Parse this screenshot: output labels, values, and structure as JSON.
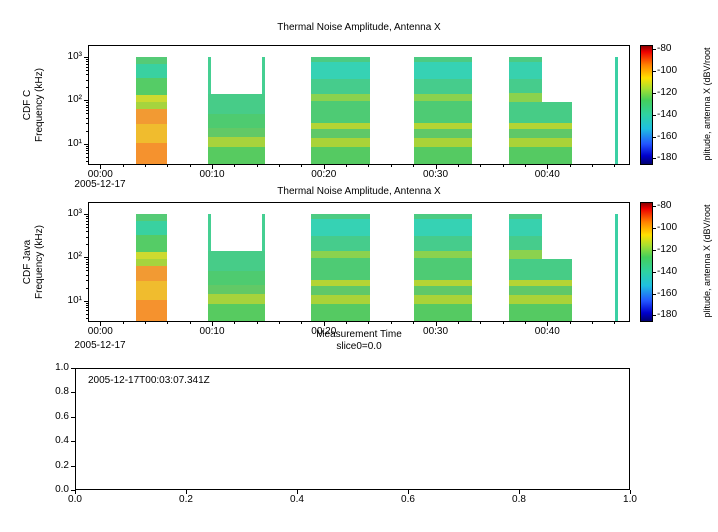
{
  "window": {
    "background": "#ffffff"
  },
  "chart_data": [
    {
      "type": "heatmap",
      "panel": "top",
      "title": "Thermal Noise Amplitude, Antenna X",
      "ylabel": [
        "CDF C",
        "Frequency (kHz)"
      ],
      "xlabel": "",
      "date_label": "2005-12-17",
      "x_range_minutes": [
        -1.1,
        47.4
      ],
      "y_scale": "log",
      "y_range_khz": [
        3.2,
        1900
      ],
      "x_ticks": [
        {
          "min": 0,
          "label": "00:00"
        },
        {
          "min": 10,
          "label": "00:10"
        },
        {
          "min": 20,
          "label": "00:20"
        },
        {
          "min": 30,
          "label": "00:30"
        },
        {
          "min": 40,
          "label": "00:40"
        }
      ],
      "y_ticks": [
        {
          "khz": 10,
          "label": "10¹"
        },
        {
          "khz": 100,
          "label": "10²"
        },
        {
          "khz": 1000,
          "label": "10³"
        }
      ],
      "colorbar": {
        "label": "plitude, antenna X (dBV/root",
        "ticks": [
          -80,
          -100,
          -120,
          -140,
          -160,
          -180
        ],
        "range": [
          -76,
          -186
        ],
        "gradient": [
          "#8b0000 0%",
          "#ee0000 5%",
          "#ff8000 16%",
          "#ffe000 27%",
          "#a8e030 36%",
          "#44cf5c 46%",
          "#2fd3a0 58%",
          "#1fc0e0 70%",
          "#2255ff 83%",
          "#0000cc 93%",
          "#000070 100%"
        ]
      },
      "bursts": [
        {
          "t": [
            3.1,
            5.9
          ],
          "f": [
            3.2,
            10
          ],
          "c": "#f5922e"
        },
        {
          "t": [
            3.1,
            5.9
          ],
          "f": [
            10,
            28
          ],
          "c": "#f0bc2e"
        },
        {
          "t": [
            3.1,
            5.9
          ],
          "f": [
            28,
            62
          ],
          "c": "#f29a33"
        },
        {
          "t": [
            3.1,
            5.9
          ],
          "f": [
            62,
            90
          ],
          "c": "#a6d43e"
        },
        {
          "t": [
            3.1,
            5.9
          ],
          "f": [
            90,
            135
          ],
          "c": "#cdda30"
        },
        {
          "t": [
            3.1,
            5.9
          ],
          "f": [
            135,
            330
          ],
          "c": "#55cc66"
        },
        {
          "t": [
            3.1,
            5.9
          ],
          "f": [
            330,
            730
          ],
          "c": "#39d1a0"
        },
        {
          "t": [
            3.1,
            5.9
          ],
          "f": [
            730,
            1050
          ],
          "c": "#55cb76"
        },
        {
          "t": [
            9.6,
            9.85
          ],
          "f": [
            3.2,
            1050
          ],
          "c": "#45cf92"
        },
        {
          "t": [
            14.45,
            14.7
          ],
          "f": [
            3.2,
            1050
          ],
          "c": "#45cf92"
        },
        {
          "t": [
            9.6,
            14.7
          ],
          "f": [
            3.2,
            8
          ],
          "c": "#57cb60"
        },
        {
          "t": [
            9.6,
            14.7
          ],
          "f": [
            8,
            14
          ],
          "c": "#a7d33c"
        },
        {
          "t": [
            9.6,
            14.7
          ],
          "f": [
            14,
            22
          ],
          "c": "#62c966"
        },
        {
          "t": [
            9.6,
            14.7
          ],
          "f": [
            22,
            48
          ],
          "c": "#4ecb70"
        },
        {
          "t": [
            9.6,
            14.7
          ],
          "f": [
            48,
            140
          ],
          "c": "#47cc88"
        },
        {
          "t": [
            18.8,
            24.1
          ],
          "f": [
            3.2,
            8
          ],
          "c": "#55ca62"
        },
        {
          "t": [
            18.8,
            24.1
          ],
          "f": [
            8,
            13
          ],
          "c": "#a9d338"
        },
        {
          "t": [
            18.8,
            24.1
          ],
          "f": [
            13,
            21
          ],
          "c": "#5fc868"
        },
        {
          "t": [
            18.8,
            24.1
          ],
          "f": [
            21,
            30
          ],
          "c": "#b4d434"
        },
        {
          "t": [
            18.8,
            24.1
          ],
          "f": [
            30,
            95
          ],
          "c": "#4ecb74"
        },
        {
          "t": [
            18.8,
            24.1
          ],
          "f": [
            95,
            145
          ],
          "c": "#8bd24e"
        },
        {
          "t": [
            18.8,
            24.1
          ],
          "f": [
            145,
            310
          ],
          "c": "#46cc8c"
        },
        {
          "t": [
            18.8,
            24.1
          ],
          "f": [
            310,
            820
          ],
          "c": "#36d2b4"
        },
        {
          "t": [
            18.8,
            24.1
          ],
          "f": [
            820,
            1050
          ],
          "c": "#4ccb82"
        },
        {
          "t": [
            28.1,
            33.3
          ],
          "f": [
            3.2,
            8
          ],
          "c": "#55ca62"
        },
        {
          "t": [
            28.1,
            33.3
          ],
          "f": [
            8,
            13
          ],
          "c": "#a9d338"
        },
        {
          "t": [
            28.1,
            33.3
          ],
          "f": [
            13,
            21
          ],
          "c": "#5fc868"
        },
        {
          "t": [
            28.1,
            33.3
          ],
          "f": [
            21,
            30
          ],
          "c": "#b4d434"
        },
        {
          "t": [
            28.1,
            33.3
          ],
          "f": [
            30,
            95
          ],
          "c": "#4ecb74"
        },
        {
          "t": [
            28.1,
            33.3
          ],
          "f": [
            95,
            145
          ],
          "c": "#8bd24e"
        },
        {
          "t": [
            28.1,
            33.3
          ],
          "f": [
            145,
            310
          ],
          "c": "#46cc8c"
        },
        {
          "t": [
            28.1,
            33.3
          ],
          "f": [
            310,
            820
          ],
          "c": "#36d2b4"
        },
        {
          "t": [
            28.1,
            33.3
          ],
          "f": [
            820,
            1050
          ],
          "c": "#4ccb82"
        },
        {
          "t": [
            36.6,
            42.3
          ],
          "f": [
            3.2,
            8
          ],
          "c": "#55ca62"
        },
        {
          "t": [
            36.6,
            42.3
          ],
          "f": [
            8,
            13
          ],
          "c": "#a9d338"
        },
        {
          "t": [
            36.6,
            42.3
          ],
          "f": [
            13,
            21
          ],
          "c": "#5fc868"
        },
        {
          "t": [
            36.6,
            42.3
          ],
          "f": [
            21,
            30
          ],
          "c": "#b4d434"
        },
        {
          "t": [
            36.6,
            42.3
          ],
          "f": [
            30,
            92
          ],
          "c": "#47cc86"
        },
        {
          "t": [
            36.6,
            39.6
          ],
          "f": [
            92,
            150
          ],
          "c": "#8bd24e"
        },
        {
          "t": [
            36.6,
            39.6
          ],
          "f": [
            150,
            320
          ],
          "c": "#46cc8c"
        },
        {
          "t": [
            36.6,
            39.6
          ],
          "f": [
            320,
            800
          ],
          "c": "#38d1ae"
        },
        {
          "t": [
            36.6,
            39.6
          ],
          "f": [
            800,
            1050
          ],
          "c": "#4ccb82"
        },
        {
          "t": [
            46.1,
            46.4
          ],
          "f": [
            3.2,
            1050
          ],
          "c": "#3bd0a4"
        }
      ]
    },
    {
      "type": "heatmap",
      "panel": "mid",
      "title": "Thermal Noise Amplitude, Antenna X",
      "ylabel": [
        "CDF Java",
        "Frequency (kHz)"
      ],
      "xlabel": "Measurement Time",
      "slice_label": "slice0=0.0",
      "date_label": "2005-12-17",
      "x_range_minutes": [
        -1.1,
        47.4
      ],
      "y_scale": "log",
      "y_range_khz": [
        3.2,
        1900
      ],
      "x_ticks": [
        {
          "min": 0,
          "label": "00:00"
        },
        {
          "min": 10,
          "label": "00:10"
        },
        {
          "min": 20,
          "label": "00:20"
        },
        {
          "min": 30,
          "label": "00:30"
        },
        {
          "min": 40,
          "label": "00:40"
        }
      ],
      "y_ticks": [
        {
          "khz": 10,
          "label": "10¹"
        },
        {
          "khz": 100,
          "label": "10²"
        },
        {
          "khz": 1000,
          "label": "10³"
        }
      ],
      "colorbar": {
        "label": "plitude, antenna X (dBV/root",
        "ticks": [
          -80,
          -100,
          -120,
          -140,
          -160,
          -180
        ],
        "range": [
          -76,
          -186
        ],
        "gradient": [
          "#8b0000 0%",
          "#ee0000 5%",
          "#ff8000 16%",
          "#ffe000 27%",
          "#a8e030 36%",
          "#44cf5c 46%",
          "#2fd3a0 58%",
          "#1fc0e0 70%",
          "#2255ff 83%",
          "#0000cc 93%",
          "#000070 100%"
        ]
      },
      "bursts": [
        {
          "t": [
            3.1,
            5.9
          ],
          "f": [
            3.2,
            10
          ],
          "c": "#f5922e"
        },
        {
          "t": [
            3.1,
            5.9
          ],
          "f": [
            10,
            28
          ],
          "c": "#f0bc2e"
        },
        {
          "t": [
            3.1,
            5.9
          ],
          "f": [
            28,
            62
          ],
          "c": "#f29a33"
        },
        {
          "t": [
            3.1,
            5.9
          ],
          "f": [
            62,
            90
          ],
          "c": "#a6d43e"
        },
        {
          "t": [
            3.1,
            5.9
          ],
          "f": [
            90,
            135
          ],
          "c": "#cdda30"
        },
        {
          "t": [
            3.1,
            5.9
          ],
          "f": [
            135,
            330
          ],
          "c": "#55cc66"
        },
        {
          "t": [
            3.1,
            5.9
          ],
          "f": [
            330,
            730
          ],
          "c": "#39d1a0"
        },
        {
          "t": [
            3.1,
            5.9
          ],
          "f": [
            730,
            1050
          ],
          "c": "#55cb76"
        },
        {
          "t": [
            9.6,
            9.85
          ],
          "f": [
            3.2,
            1050
          ],
          "c": "#45cf92"
        },
        {
          "t": [
            14.45,
            14.7
          ],
          "f": [
            3.2,
            1050
          ],
          "c": "#45cf92"
        },
        {
          "t": [
            9.6,
            14.7
          ],
          "f": [
            3.2,
            8
          ],
          "c": "#57cb60"
        },
        {
          "t": [
            9.6,
            14.7
          ],
          "f": [
            8,
            14
          ],
          "c": "#a7d33c"
        },
        {
          "t": [
            9.6,
            14.7
          ],
          "f": [
            14,
            22
          ],
          "c": "#62c966"
        },
        {
          "t": [
            9.6,
            14.7
          ],
          "f": [
            22,
            48
          ],
          "c": "#4ecb70"
        },
        {
          "t": [
            9.6,
            14.7
          ],
          "f": [
            48,
            140
          ],
          "c": "#47cc88"
        },
        {
          "t": [
            18.8,
            24.1
          ],
          "f": [
            3.2,
            8
          ],
          "c": "#55ca62"
        },
        {
          "t": [
            18.8,
            24.1
          ],
          "f": [
            8,
            13
          ],
          "c": "#a9d338"
        },
        {
          "t": [
            18.8,
            24.1
          ],
          "f": [
            13,
            21
          ],
          "c": "#5fc868"
        },
        {
          "t": [
            18.8,
            24.1
          ],
          "f": [
            21,
            30
          ],
          "c": "#b4d434"
        },
        {
          "t": [
            18.8,
            24.1
          ],
          "f": [
            30,
            95
          ],
          "c": "#4ecb74"
        },
        {
          "t": [
            18.8,
            24.1
          ],
          "f": [
            95,
            145
          ],
          "c": "#8bd24e"
        },
        {
          "t": [
            18.8,
            24.1
          ],
          "f": [
            145,
            310
          ],
          "c": "#46cc8c"
        },
        {
          "t": [
            18.8,
            24.1
          ],
          "f": [
            310,
            820
          ],
          "c": "#36d2b4"
        },
        {
          "t": [
            18.8,
            24.1
          ],
          "f": [
            820,
            1050
          ],
          "c": "#4ccb82"
        },
        {
          "t": [
            28.1,
            33.3
          ],
          "f": [
            3.2,
            8
          ],
          "c": "#55ca62"
        },
        {
          "t": [
            28.1,
            33.3
          ],
          "f": [
            8,
            13
          ],
          "c": "#a9d338"
        },
        {
          "t": [
            28.1,
            33.3
          ],
          "f": [
            13,
            21
          ],
          "c": "#5fc868"
        },
        {
          "t": [
            28.1,
            33.3
          ],
          "f": [
            21,
            30
          ],
          "c": "#b4d434"
        },
        {
          "t": [
            28.1,
            33.3
          ],
          "f": [
            30,
            95
          ],
          "c": "#4ecb74"
        },
        {
          "t": [
            28.1,
            33.3
          ],
          "f": [
            95,
            145
          ],
          "c": "#8bd24e"
        },
        {
          "t": [
            28.1,
            33.3
          ],
          "f": [
            145,
            310
          ],
          "c": "#46cc8c"
        },
        {
          "t": [
            28.1,
            33.3
          ],
          "f": [
            310,
            820
          ],
          "c": "#36d2b4"
        },
        {
          "t": [
            28.1,
            33.3
          ],
          "f": [
            820,
            1050
          ],
          "c": "#4ccb82"
        },
        {
          "t": [
            36.6,
            42.3
          ],
          "f": [
            3.2,
            8
          ],
          "c": "#55ca62"
        },
        {
          "t": [
            36.6,
            42.3
          ],
          "f": [
            8,
            13
          ],
          "c": "#a9d338"
        },
        {
          "t": [
            36.6,
            42.3
          ],
          "f": [
            13,
            21
          ],
          "c": "#5fc868"
        },
        {
          "t": [
            36.6,
            42.3
          ],
          "f": [
            21,
            30
          ],
          "c": "#b4d434"
        },
        {
          "t": [
            36.6,
            42.3
          ],
          "f": [
            30,
            92
          ],
          "c": "#47cc86"
        },
        {
          "t": [
            36.6,
            39.6
          ],
          "f": [
            92,
            150
          ],
          "c": "#8bd24e"
        },
        {
          "t": [
            36.6,
            39.6
          ],
          "f": [
            150,
            320
          ],
          "c": "#46cc8c"
        },
        {
          "t": [
            36.6,
            39.6
          ],
          "f": [
            320,
            800
          ],
          "c": "#38d1ae"
        },
        {
          "t": [
            36.6,
            39.6
          ],
          "f": [
            800,
            1050
          ],
          "c": "#4ccb82"
        },
        {
          "t": [
            46.1,
            46.4
          ],
          "f": [
            3.2,
            1050
          ],
          "c": "#3bd0a4"
        }
      ]
    },
    {
      "type": "line",
      "panel": "bot",
      "title": "",
      "annotation": "2005-12-17T00:03:07.341Z",
      "xlim": [
        0,
        1
      ],
      "ylim": [
        0,
        1
      ],
      "series": [],
      "x_ticks": [
        {
          "v": 0.0,
          "label": "0.0"
        },
        {
          "v": 0.2,
          "label": "0.2"
        },
        {
          "v": 0.4,
          "label": "0.4"
        },
        {
          "v": 0.6,
          "label": "0.6"
        },
        {
          "v": 0.8,
          "label": "0.8"
        },
        {
          "v": 1.0,
          "label": "1.0"
        }
      ],
      "y_ticks": [
        {
          "v": 1.0,
          "label": "1.0"
        },
        {
          "v": 0.8,
          "label": "0.8"
        },
        {
          "v": 0.6,
          "label": "0.6"
        },
        {
          "v": 0.4,
          "label": "0.4"
        },
        {
          "v": 0.2,
          "label": "0.2"
        },
        {
          "v": 0.0,
          "label": "0.0"
        }
      ]
    }
  ]
}
